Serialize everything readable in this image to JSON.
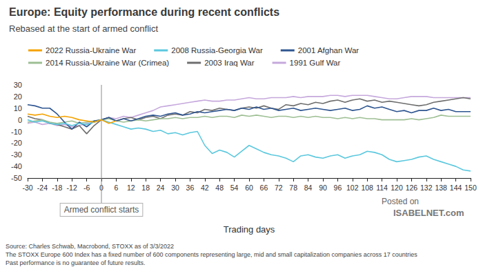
{
  "chart_data": {
    "type": "line",
    "title": "Europe: Equity performance during recent conflicts",
    "subtitle": "Rebased at the start of armed conflict",
    "x_label": "Trading days",
    "x": [
      -30,
      -27,
      -24,
      -21,
      -18,
      -15,
      -12,
      -9,
      -6,
      -3,
      0,
      3,
      6,
      9,
      12,
      15,
      18,
      21,
      24,
      27,
      30,
      33,
      36,
      39,
      42,
      45,
      48,
      51,
      54,
      57,
      60,
      63,
      66,
      69,
      72,
      75,
      78,
      81,
      84,
      87,
      90,
      93,
      96,
      99,
      102,
      105,
      108,
      111,
      114,
      117,
      120,
      123,
      126,
      129,
      132,
      135,
      138,
      141,
      144,
      147,
      150
    ],
    "xlim": [
      -30,
      150
    ],
    "xticks": [
      -30,
      -24,
      -18,
      -12,
      -6,
      0,
      6,
      12,
      18,
      24,
      30,
      36,
      42,
      48,
      54,
      60,
      66,
      72,
      78,
      84,
      90,
      96,
      102,
      108,
      114,
      120,
      126,
      132,
      138,
      144,
      150
    ],
    "ylim": [
      -50,
      30
    ],
    "yticks": [
      -50,
      -40,
      -30,
      -20,
      -10,
      0,
      10,
      20,
      30
    ],
    "grid": false,
    "legend": "top",
    "series": [
      {
        "name": "2022 Russia-Ukraine War",
        "color": "#f5a200",
        "values": [
          5,
          4,
          5,
          3,
          2,
          3,
          2,
          0,
          -1,
          -2,
          0,
          -3,
          -1,
          null,
          null,
          null,
          null,
          null,
          null,
          null,
          null,
          null,
          null,
          null,
          null,
          null,
          null,
          null,
          null,
          null,
          null,
          null,
          null,
          null,
          null,
          null,
          null,
          null,
          null,
          null,
          null,
          null,
          null,
          null,
          null,
          null,
          null,
          null,
          null,
          null,
          null,
          null,
          null,
          null,
          null,
          null,
          null,
          null,
          null,
          null,
          null
        ]
      },
      {
        "name": "2008 Russia-Georgia War",
        "color": "#5bc8de",
        "values": [
          0,
          -2,
          -1,
          -3,
          -4,
          -3,
          -5,
          -3,
          -4,
          -2,
          0,
          -2,
          -4,
          -6,
          -8,
          -7,
          -8,
          -10,
          -9,
          -12,
          -11,
          -13,
          -11,
          -10,
          -22,
          -29,
          -26,
          -28,
          -32,
          -27,
          -22,
          -25,
          -28,
          -30,
          -31,
          -33,
          -36,
          -31,
          -30,
          -32,
          -33,
          -31,
          -30,
          -33,
          -31,
          -30,
          -27,
          -28,
          -30,
          -34,
          -36,
          -35,
          -34,
          -32,
          -31,
          -34,
          -36,
          -38,
          -40,
          -43,
          -44
        ]
      },
      {
        "name": "2001 Afghan War",
        "color": "#2e5590",
        "values": [
          13,
          12,
          10,
          10,
          5,
          -2,
          -8,
          -2,
          -6,
          -1,
          0,
          2,
          -1,
          1,
          -1,
          1,
          3,
          4,
          3,
          5,
          6,
          4,
          5,
          7,
          6,
          7,
          8,
          9,
          8,
          10,
          9,
          11,
          9,
          10,
          8,
          9,
          10,
          8,
          9,
          10,
          9,
          8,
          9,
          10,
          8,
          9,
          12,
          10,
          11,
          9,
          7,
          8,
          6,
          8,
          8,
          10,
          8,
          9,
          7,
          7,
          7
        ]
      },
      {
        "name": "2014 Russia-Ukraine War (Crimea)",
        "color": "#9dbf93",
        "values": [
          -2,
          -1,
          0,
          -2,
          -3,
          -2,
          -1,
          -3,
          -2,
          -1,
          0,
          1,
          -1,
          -2,
          -1,
          0,
          -1,
          0,
          1,
          1,
          2,
          1,
          2,
          2,
          3,
          2,
          3,
          3,
          2,
          4,
          3,
          4,
          3,
          2,
          3,
          3,
          2,
          3,
          2,
          3,
          2,
          2,
          1,
          2,
          1,
          2,
          1,
          1,
          0,
          0,
          0,
          0,
          1,
          0,
          1,
          2,
          4,
          3,
          3,
          3,
          3
        ]
      },
      {
        "name": "2003 Iraq War",
        "color": "#6e6e6e",
        "values": [
          3,
          1,
          0,
          -3,
          -4,
          -6,
          -8,
          -5,
          -12,
          -5,
          0,
          2,
          -1,
          1,
          2,
          0,
          2,
          3,
          1,
          4,
          5,
          4,
          7,
          6,
          9,
          8,
          10,
          9,
          8,
          10,
          11,
          10,
          12,
          10,
          9,
          13,
          12,
          14,
          13,
          15,
          14,
          16,
          17,
          15,
          17,
          18,
          16,
          17,
          15,
          16,
          15,
          14,
          13,
          12,
          13,
          15,
          16,
          17,
          18,
          19,
          18
        ]
      },
      {
        "name": "1991 Gulf War",
        "color": "#c5a8dc",
        "values": [
          -3,
          -2,
          -4,
          -3,
          -5,
          -4,
          -6,
          -5,
          -3,
          -2,
          0,
          2,
          1,
          3,
          2,
          4,
          6,
          8,
          11,
          12,
          13,
          14,
          15,
          16,
          17,
          16,
          16,
          17,
          17,
          18,
          19,
          18,
          18,
          19,
          19,
          19,
          20,
          19,
          20,
          20,
          20,
          21,
          21,
          20,
          21,
          21,
          21,
          20,
          19,
          18,
          18,
          19,
          20,
          20,
          20,
          19,
          19,
          19,
          19,
          19,
          19
        ]
      }
    ],
    "annotations": [
      {
        "x": 0,
        "text": "Armed conflict starts"
      }
    ],
    "notes": [
      "Source: Charles Schwab, Macrobond, STOXX as of 3/3/2022",
      "The STOXX Europe 600 Index has a fixed number of 600 components representing large, mid and small capitalization companies across 17 countries",
      "Past performance is no guarantee of future results."
    ],
    "watermark": [
      "Posted on",
      "ISABELNET.com"
    ]
  }
}
